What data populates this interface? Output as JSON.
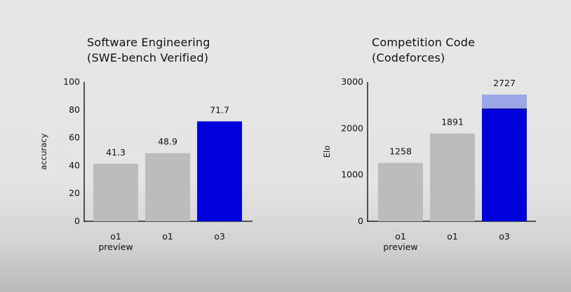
{
  "chart_data": [
    {
      "type": "bar",
      "title_line1": "Software Engineering",
      "title_line2": "(SWE-bench Verified)",
      "ylabel": "accuracy",
      "xlabel": "",
      "ylim": [
        0,
        100
      ],
      "yticks": [
        0,
        20,
        40,
        60,
        80,
        100
      ],
      "categories": [
        {
          "line1": "o1",
          "line2": "preview"
        },
        {
          "line1": "o1",
          "line2": ""
        },
        {
          "line1": "o3",
          "line2": ""
        }
      ],
      "values": [
        41.3,
        48.9,
        71.7
      ],
      "value_labels": [
        "41.3",
        "48.9",
        "71.7"
      ],
      "colors": [
        "#bcbcbc",
        "#bcbcbc",
        "#0000dd"
      ],
      "grid": false
    },
    {
      "type": "bar",
      "title_line1": "Competition Code",
      "title_line2": "(Codeforces)",
      "ylabel": "Elo",
      "xlabel": "",
      "ylim": [
        0,
        3000
      ],
      "yticks": [
        0,
        1000,
        2000,
        3000
      ],
      "categories": [
        {
          "line1": "o1",
          "line2": "preview"
        },
        {
          "line1": "o1",
          "line2": ""
        },
        {
          "line1": "o3",
          "line2": ""
        }
      ],
      "values": [
        1258,
        1891,
        2727
      ],
      "value_labels": [
        "1258",
        "1891",
        "2727"
      ],
      "colors": [
        "#bcbcbc",
        "#bcbcbc",
        "#0000dd"
      ],
      "stacked_o3": {
        "solid": 2420,
        "light": 2727,
        "light_color": "#9aa6e6"
      },
      "grid": false
    }
  ]
}
